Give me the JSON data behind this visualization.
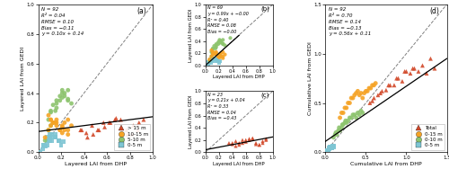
{
  "panels": {
    "a": {
      "label": "(a)",
      "stats": "N = 92\nR² = 0.04\nRMSE = 0.10\nBias = −0.11\ny = 0.10x + 0.14",
      "xlabel": "Layered LAI from DHP",
      "ylabel": "Layered LAI from GEDI",
      "xlim": [
        0,
        1.0
      ],
      "ylim": [
        0,
        1.0
      ],
      "xticks": [
        0.0,
        0.2,
        0.4,
        0.6,
        0.8,
        1.0
      ],
      "yticks": [
        0.0,
        0.2,
        0.4,
        0.6,
        0.8,
        1.0
      ],
      "reg_slope": 0.1,
      "reg_intercept": 0.14
    },
    "b": {
      "label": "(b)",
      "stats": "N = 69\ny = 0.99x + −0.00\nR² = 0.40\nRMSE = 0.08\nBias = −0.00",
      "xlabel": "Layered LAI from DHP",
      "ylabel": "Layered LAI from GEDI",
      "xlim": [
        0,
        1.0
      ],
      "ylim": [
        0,
        1.0
      ],
      "xticks": [
        0.0,
        0.2,
        0.4,
        0.6,
        0.8,
        1.0
      ],
      "yticks": [
        0.0,
        0.2,
        0.4,
        0.6,
        0.8,
        1.0
      ],
      "reg_slope": 0.99,
      "reg_intercept": 0.0
    },
    "c": {
      "label": "(c)",
      "stats": "N = 23\ny = 0.21x + 0.04\nR² = 0.33\nRMSE = 0.04\nBias = −0.43",
      "xlabel": "Layered LAI from DHP",
      "ylabel": "Layered LAI from GEDI",
      "xlim": [
        0,
        1.0
      ],
      "ylim": [
        0,
        1.0
      ],
      "xticks": [
        0.0,
        0.2,
        0.4,
        0.6,
        0.8,
        1.0
      ],
      "yticks": [
        0.0,
        0.2,
        0.4,
        0.6,
        0.8,
        1.0
      ],
      "reg_slope": 0.21,
      "reg_intercept": 0.04
    },
    "d": {
      "label": "(d)",
      "stats": "N = 92\nR² = 0.70\nRMSE = 0.14\nBias = −0.13\ny = 0.56x + 0.11",
      "xlabel": "Cumulative LAI from DHP",
      "ylabel": "Cumulative LAI from GEDI",
      "xlim": [
        0,
        1.5
      ],
      "ylim": [
        0,
        1.5
      ],
      "xticks": [
        0.0,
        0.5,
        1.0,
        1.5
      ],
      "yticks": [
        0.0,
        0.5,
        1.0,
        1.5
      ],
      "reg_slope": 0.56,
      "reg_intercept": 0.11
    }
  },
  "colors": {
    "red": "#D2492A",
    "orange": "#F5A325",
    "green": "#8DC46E",
    "blue": "#7EC5D3"
  },
  "scatter_a": {
    "gt15_dhp": [
      0.37,
      0.42,
      0.47,
      0.52,
      0.57,
      0.62,
      0.67,
      0.72,
      0.77,
      0.82,
      0.87,
      0.92,
      0.38,
      0.43,
      0.48,
      0.53,
      0.58,
      0.63,
      0.68,
      0.73,
      0.78,
      0.83,
      0.88
    ],
    "gt15_gedi": [
      0.15,
      0.13,
      0.18,
      0.15,
      0.2,
      0.2,
      0.22,
      0.22,
      0.15,
      0.12,
      0.15,
      0.22,
      0.15,
      0.1,
      0.12,
      0.15,
      0.17,
      0.2,
      0.23,
      0.13,
      0.12,
      0.18,
      0.2
    ],
    "m1015_dhp": [
      0.06,
      0.09,
      0.11,
      0.13,
      0.16,
      0.19,
      0.21,
      0.23,
      0.26,
      0.11,
      0.13,
      0.16,
      0.19,
      0.21,
      0.23,
      0.26,
      0.29,
      0.15,
      0.09,
      0.11,
      0.16,
      0.21,
      0.26
    ],
    "m1015_gedi": [
      0.1,
      0.15,
      0.18,
      0.2,
      0.22,
      0.15,
      0.17,
      0.15,
      0.12,
      0.22,
      0.2,
      0.18,
      0.15,
      0.13,
      0.2,
      0.22,
      0.18,
      0.2,
      0.25,
      0.22,
      0.2,
      0.18,
      0.15
    ],
    "m510_dhp": [
      0.06,
      0.09,
      0.11,
      0.13,
      0.16,
      0.19,
      0.21,
      0.23,
      0.26,
      0.11,
      0.13,
      0.16,
      0.19,
      0.21,
      0.23,
      0.26,
      0.29,
      0.15,
      0.09,
      0.11,
      0.16,
      0.21,
      0.26
    ],
    "m510_gedi": [
      0.08,
      0.15,
      0.18,
      0.2,
      0.3,
      0.35,
      0.4,
      0.38,
      0.35,
      0.28,
      0.32,
      0.35,
      0.38,
      0.42,
      0.4,
      0.36,
      0.33,
      0.28,
      0.22,
      0.27,
      0.33,
      0.37,
      0.42
    ],
    "m05_dhp": [
      0.02,
      0.04,
      0.06,
      0.08,
      0.1,
      0.12,
      0.15,
      0.18,
      0.05,
      0.08,
      0.1,
      0.12,
      0.15,
      0.18,
      0.2,
      0.22,
      0.08,
      0.1,
      0.12,
      0.15,
      0.05,
      0.08,
      0.1
    ],
    "m05_gedi": [
      0.0,
      0.02,
      0.04,
      0.05,
      0.08,
      0.1,
      0.12,
      0.08,
      0.05,
      0.08,
      0.1,
      0.12,
      0.1,
      0.08,
      0.05,
      0.07,
      0.1,
      0.12,
      0.08,
      0.1,
      0.05,
      0.08,
      0.1
    ]
  },
  "scatter_b": {
    "m05_dhp": [
      0.02,
      0.04,
      0.06,
      0.08,
      0.1,
      0.12,
      0.15,
      0.18,
      0.05,
      0.08,
      0.1,
      0.12,
      0.15,
      0.18,
      0.2,
      0.22,
      0.08,
      0.1,
      0.12,
      0.15,
      0.05,
      0.08,
      0.1
    ],
    "m05_gedi": [
      0.0,
      0.02,
      0.04,
      0.05,
      0.08,
      0.1,
      0.12,
      0.08,
      0.05,
      0.08,
      0.1,
      0.12,
      0.1,
      0.08,
      0.05,
      0.07,
      0.1,
      0.12,
      0.08,
      0.1,
      0.05,
      0.08,
      0.1
    ],
    "m510_dhp": [
      0.06,
      0.09,
      0.11,
      0.13,
      0.16,
      0.19,
      0.21,
      0.23,
      0.26,
      0.11,
      0.13,
      0.16,
      0.19,
      0.21,
      0.23,
      0.26,
      0.29,
      0.15,
      0.09,
      0.11,
      0.16,
      0.21,
      0.26
    ],
    "m510_gedi": [
      0.08,
      0.15,
      0.18,
      0.2,
      0.3,
      0.35,
      0.4,
      0.38,
      0.35,
      0.28,
      0.32,
      0.35,
      0.38,
      0.42,
      0.4,
      0.36,
      0.33,
      0.28,
      0.22,
      0.27,
      0.33,
      0.37,
      0.42
    ],
    "m1015_dhp": [
      0.06,
      0.09,
      0.11,
      0.13,
      0.16,
      0.19,
      0.21,
      0.23,
      0.26,
      0.11,
      0.13,
      0.16,
      0.19,
      0.21,
      0.23,
      0.26,
      0.29,
      0.15,
      0.09,
      0.11,
      0.16,
      0.21,
      0.26
    ],
    "m1015_gedi": [
      0.1,
      0.15,
      0.18,
      0.2,
      0.22,
      0.15,
      0.17,
      0.15,
      0.12,
      0.22,
      0.2,
      0.18,
      0.15,
      0.13,
      0.2,
      0.22,
      0.18,
      0.2,
      0.25,
      0.22,
      0.2,
      0.18,
      0.15
    ],
    "extra_green_dhp": [
      0.37
    ],
    "extra_green_gedi": [
      0.45
    ]
  },
  "scatter_c": {
    "gt15_dhp": [
      0.35,
      0.4,
      0.45,
      0.5,
      0.55,
      0.6,
      0.65,
      0.7,
      0.75,
      0.8,
      0.85,
      0.9,
      0.4,
      0.45,
      0.5,
      0.55,
      0.6,
      0.65,
      0.7,
      0.75,
      0.8,
      0.85,
      0.9
    ],
    "gt15_gedi": [
      0.15,
      0.13,
      0.18,
      0.15,
      0.2,
      0.2,
      0.22,
      0.22,
      0.15,
      0.12,
      0.15,
      0.22,
      0.15,
      0.1,
      0.12,
      0.15,
      0.17,
      0.2,
      0.23,
      0.13,
      0.12,
      0.18,
      0.2
    ]
  },
  "scatter_d": {
    "m05_dhp": [
      0.01,
      0.02,
      0.03,
      0.04,
      0.05,
      0.06,
      0.07,
      0.08,
      0.09,
      0.1,
      0.02,
      0.03,
      0.05,
      0.07,
      0.09,
      0.04,
      0.06,
      0.08,
      0.02,
      0.04,
      0.06,
      0.08,
      0.1
    ],
    "m05_gedi": [
      0.0,
      0.01,
      0.01,
      0.02,
      0.03,
      0.04,
      0.05,
      0.04,
      0.06,
      0.05,
      0.02,
      0.02,
      0.04,
      0.05,
      0.06,
      0.03,
      0.05,
      0.04,
      0.01,
      0.02,
      0.04,
      0.05,
      0.06
    ],
    "m010_dhp": [
      0.1,
      0.14,
      0.18,
      0.22,
      0.26,
      0.3,
      0.34,
      0.38,
      0.42,
      0.46,
      0.12,
      0.16,
      0.2,
      0.24,
      0.28,
      0.32,
      0.36,
      0.4,
      0.44,
      0.13,
      0.17,
      0.21,
      0.25
    ],
    "m010_gedi": [
      0.15,
      0.18,
      0.22,
      0.28,
      0.3,
      0.35,
      0.38,
      0.35,
      0.38,
      0.4,
      0.18,
      0.22,
      0.25,
      0.3,
      0.32,
      0.35,
      0.38,
      0.4,
      0.42,
      0.2,
      0.25,
      0.28,
      0.32
    ],
    "m015_dhp": [
      0.18,
      0.22,
      0.26,
      0.3,
      0.34,
      0.38,
      0.42,
      0.46,
      0.5,
      0.54,
      0.58,
      0.62,
      0.2,
      0.24,
      0.28,
      0.32,
      0.36,
      0.4,
      0.44,
      0.48,
      0.52,
      0.56,
      0.6
    ],
    "m015_gedi": [
      0.35,
      0.4,
      0.45,
      0.5,
      0.55,
      0.6,
      0.58,
      0.55,
      0.62,
      0.65,
      0.68,
      0.7,
      0.4,
      0.45,
      0.5,
      0.55,
      0.58,
      0.62,
      0.6,
      0.6,
      0.62,
      0.65,
      0.68
    ],
    "total_dhp": [
      0.55,
      0.65,
      0.75,
      0.85,
      0.95,
      1.05,
      1.15,
      1.25,
      1.35,
      0.6,
      0.7,
      0.8,
      0.9,
      1.0,
      1.1,
      1.2,
      1.3,
      0.58,
      0.68,
      0.78,
      0.88,
      0.98,
      1.08
    ],
    "total_gedi": [
      0.5,
      0.58,
      0.63,
      0.68,
      0.72,
      0.8,
      0.82,
      0.8,
      0.85,
      0.55,
      0.62,
      0.68,
      0.75,
      0.82,
      0.85,
      0.88,
      0.95,
      0.52,
      0.6,
      0.68,
      0.75,
      0.82,
      0.85
    ]
  },
  "legend_a": [
    "> 15 m",
    "10-15 m",
    "5-10 m",
    "0-5 m"
  ],
  "legend_d": [
    "Total",
    "0-15 m",
    "0-10 m",
    "0-5 m"
  ],
  "bg_color": "#F0F0F0"
}
